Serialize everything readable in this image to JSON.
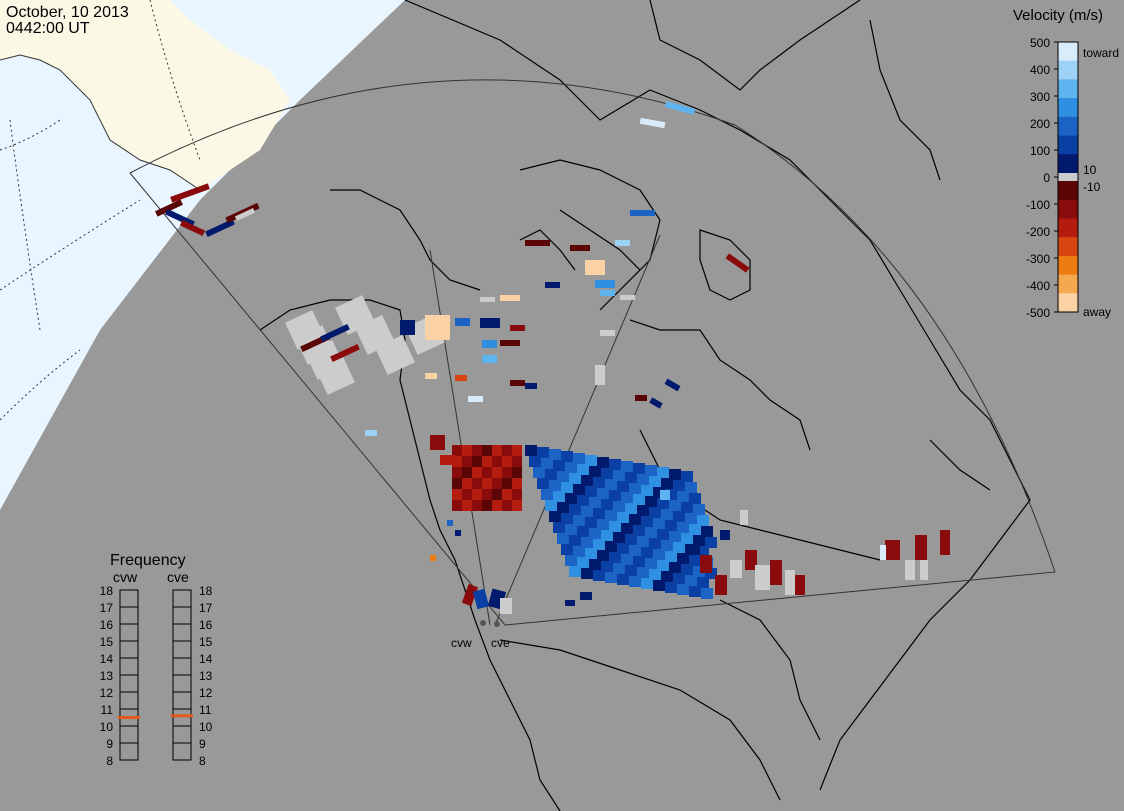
{
  "date_line": "October, 10 2013",
  "time_line": "0442:00 UT",
  "legend": {
    "title": "Velocity (m/s)",
    "toward_label": "toward",
    "away_label": "away",
    "ticks": [
      "500",
      "400",
      "300",
      "200",
      "100",
      "0",
      "-100",
      "-200",
      "-300",
      "-400",
      "-500"
    ],
    "small_ticks": [
      "10",
      "-10"
    ],
    "colors_top_to_bottom": [
      "#d9ecfb",
      "#9dd2f6",
      "#5db4ef",
      "#2f8fe0",
      "#1b63c4",
      "#0a3fa3",
      "#021a6e",
      "#5a0606",
      "#8a0b0b",
      "#b51c10",
      "#d94510",
      "#ee7a12",
      "#f6a84e",
      "#fbd2a6"
    ]
  },
  "frequency": {
    "title": "Frequency",
    "left_label": "cvw",
    "right_label": "cve",
    "ticks": [
      "18",
      "17",
      "16",
      "15",
      "14",
      "13",
      "12",
      "11",
      "10",
      "9",
      "8"
    ],
    "cvw_mhz": 10.5,
    "cve_mhz": 10.6,
    "indicator_color": "#e05a1a"
  },
  "radars": {
    "cvw": "cvw",
    "cve": "cve"
  },
  "colors": {
    "background": "#999999",
    "daylight_land": "#fbf8e6",
    "daylight_ocean": "#eaf6ff",
    "ground_scatter": "#cccccc"
  }
}
